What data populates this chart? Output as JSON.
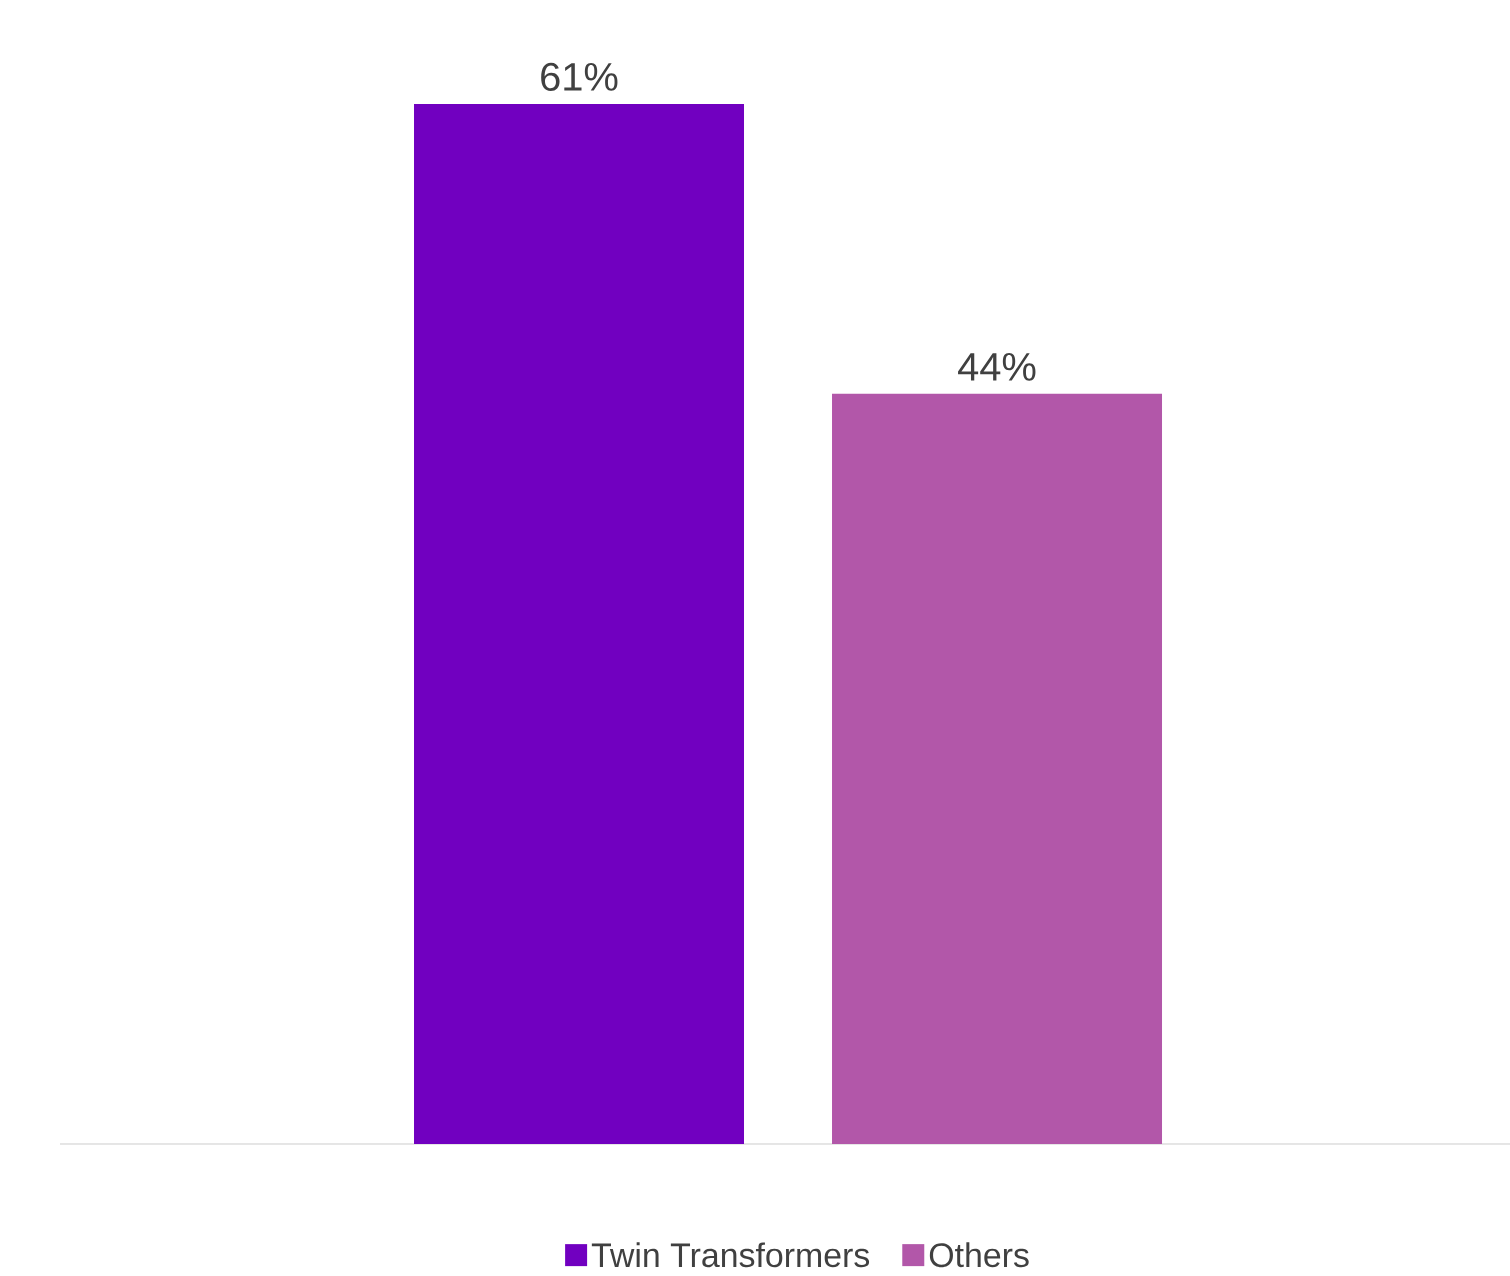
{
  "chart_data": {
    "type": "bar",
    "categories": [
      null
    ],
    "legend": "bottom",
    "series": [
      {
        "name": "Twin Transformers",
        "color": "#7100c0",
        "values": [
          61
        ],
        "value_labels": [
          "61%"
        ]
      },
      {
        "name": "Others",
        "color": "#b257a9",
        "values": [
          44
        ],
        "value_labels": [
          "44%"
        ]
      }
    ]
  }
}
